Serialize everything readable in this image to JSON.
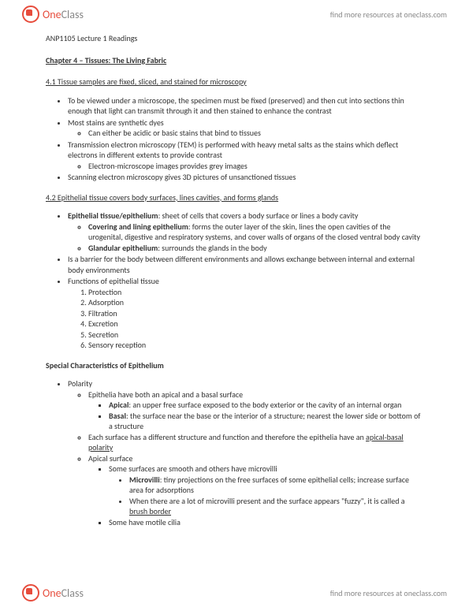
{
  "header": {
    "logo_one": "One",
    "logo_class": "Class",
    "link_text": "find more resources at oneclass.com"
  },
  "doc": {
    "course_title": "ANP1105 Lecture 1 Readings",
    "chapter_title": "Chapter 4 – Tissues: The Living Fabric",
    "sec41_title": "4.1 Tissue samples are fixed, sliced, and stained for microscopy",
    "sec41": {
      "b1": "To be viewed under a microscope, the specimen must be fixed (preserved) and then cut into sections thin enough that light can transmit through it and then stained to enhance the contrast",
      "b2": "Most stains are synthetic dyes",
      "b2a": "Can either be acidic or basic stains that bind to tissues",
      "b3": "Transmission electron microscopy (TEM) is performed with heavy metal salts as the stains which deflect electrons in different extents to provide contrast",
      "b3a": "Electron-microscope images provides grey images",
      "b4": "Scanning electron microscopy gives 3D pictures of unsanctioned tissues"
    },
    "sec42_title": "4.2 Epithelial tissue covers body surfaces, lines cavities, and forms glands",
    "sec42": {
      "b1_label": "Epithelial tissue/epithelium",
      "b1_text": ": sheet of cells that covers a body surface or lines a body cavity",
      "b1a_label": "Covering and lining epithelium",
      "b1a_text": ": forms the outer layer of the skin, lines the open cavities of the urogenital, digestive and respiratory systems, and cover walls of organs of the closed ventral body cavity",
      "b1b_label": "Glandular epithelium",
      "b1b_text": ": surrounds the glands in the body",
      "b2": "Is a barrier for the body between different environments and allows exchange between internal and external body environments",
      "b3": "Functions of epithelial tissue",
      "f1": "Protection",
      "f2": "Adsorption",
      "f3": "Filtration",
      "f4": "Excretion",
      "f5": "Secretion",
      "f6": "Sensory reception"
    },
    "special_title": "Special Characteristics of Epithelium",
    "polarity": {
      "top": "Polarity",
      "a": "Epithelia have both an apical and a basal surface",
      "a1_label": "Apical",
      "a1_text": ": an upper free surface exposed to the body exterior or the cavity of an internal organ",
      "a2_label": "Basal",
      "a2_text": ": the surface near the base or the interior of a structure; nearest the lower side or bottom of a structure",
      "b_pre": "Each surface has a different structure and function and therefore the epithelia have an ",
      "b_u": "apical-basal polarity",
      "c": "Apical surface",
      "c1": "Some surfaces are smooth and others have microvilli",
      "c1a_label": "Microvilli",
      "c1a_text": ": tiny projections on the free surfaces of some epithelial cells; increase surface area for adsorptions",
      "c1b_pre": "When there are a lot of microvilli present and the surface appears \"fuzzy\", it is called a ",
      "c1b_u": "brush border",
      "c2": "Some have motile cilia"
    }
  }
}
